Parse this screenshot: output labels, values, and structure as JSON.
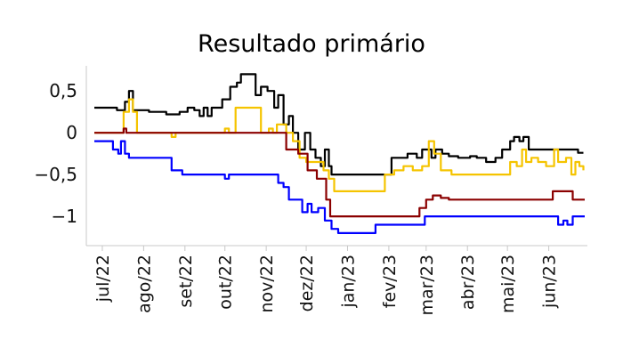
{
  "chart_data": {
    "type": "line",
    "title": "Resultado primário",
    "xlabel": "",
    "ylabel": "",
    "ylim": [
      -1.35,
      0.8
    ],
    "xlim": [
      "2022-06-19",
      "2023-06-30"
    ],
    "y_ticks": [
      0.5,
      0,
      -1
    ],
    "y_tick_labels": [
      "0,5",
      "0",
      "−0,5",
      "−1"
    ],
    "y_tick_values": [
      0.5,
      0,
      -0.5,
      -1
    ],
    "x_ticks": [
      {
        "date": "2022-07-01",
        "label": "jul/22"
      },
      {
        "date": "2022-08-01",
        "label": "ago/22"
      },
      {
        "date": "2022-09-01",
        "label": "set/22"
      },
      {
        "date": "2022-10-01",
        "label": "out/22"
      },
      {
        "date": "2022-11-01",
        "label": "nov/22"
      },
      {
        "date": "2022-12-01",
        "label": "dez/22"
      },
      {
        "date": "2023-01-01",
        "label": "jan/23"
      },
      {
        "date": "2023-02-01",
        "label": "fev/23"
      },
      {
        "date": "2023-03-01",
        "label": "mar/23"
      },
      {
        "date": "2023-04-01",
        "label": "abr/23"
      },
      {
        "date": "2023-05-01",
        "label": "mai/23"
      },
      {
        "date": "2023-06-01",
        "label": "jun/23"
      }
    ],
    "grid": false,
    "series": [
      {
        "color": "#000000",
        "points": [
          [
            "2022-06-25",
            0.3
          ],
          [
            "2022-07-08",
            0.3
          ],
          [
            "2022-07-12",
            0.27
          ],
          [
            "2022-07-18",
            0.37
          ],
          [
            "2022-07-21",
            0.5
          ],
          [
            "2022-07-24",
            0.27
          ],
          [
            "2022-07-28",
            0.27
          ],
          [
            "2022-08-05",
            0.25
          ],
          [
            "2022-08-12",
            0.25
          ],
          [
            "2022-08-18",
            0.22
          ],
          [
            "2022-08-22",
            0.22
          ],
          [
            "2022-08-28",
            0.25
          ],
          [
            "2022-09-03",
            0.3
          ],
          [
            "2022-09-08",
            0.27
          ],
          [
            "2022-09-12",
            0.2
          ],
          [
            "2022-09-15",
            0.3
          ],
          [
            "2022-09-18",
            0.2
          ],
          [
            "2022-09-21",
            0.3
          ],
          [
            "2022-09-25",
            0.3
          ],
          [
            "2022-09-29",
            0.4
          ],
          [
            "2022-10-05",
            0.55
          ],
          [
            "2022-10-10",
            0.6
          ],
          [
            "2022-10-13",
            0.7
          ],
          [
            "2022-10-20",
            0.7
          ],
          [
            "2022-10-24",
            0.45
          ],
          [
            "2022-10-28",
            0.55
          ],
          [
            "2022-11-02",
            0.5
          ],
          [
            "2022-11-07",
            0.3
          ],
          [
            "2022-11-10",
            0.45
          ],
          [
            "2022-11-14",
            0.1
          ],
          [
            "2022-11-18",
            0.2
          ],
          [
            "2022-11-21",
            0.0
          ],
          [
            "2022-11-25",
            -0.2
          ],
          [
            "2022-11-30",
            0.0
          ],
          [
            "2022-12-04",
            -0.2
          ],
          [
            "2022-12-08",
            -0.3
          ],
          [
            "2022-12-12",
            -0.4
          ],
          [
            "2022-12-15",
            -0.2
          ],
          [
            "2022-12-18",
            -0.4
          ],
          [
            "2022-12-20",
            -0.5
          ],
          [
            "2023-01-25",
            -0.5
          ],
          [
            "2023-02-03",
            -0.3
          ],
          [
            "2023-02-10",
            -0.3
          ],
          [
            "2023-02-15",
            -0.25
          ],
          [
            "2023-02-22",
            -0.3
          ],
          [
            "2023-02-26",
            -0.2
          ],
          [
            "2023-03-05",
            -0.3
          ],
          [
            "2023-03-08",
            -0.2
          ],
          [
            "2023-03-13",
            -0.25
          ],
          [
            "2023-03-18",
            -0.28
          ],
          [
            "2023-03-25",
            -0.3
          ],
          [
            "2023-04-03",
            -0.28
          ],
          [
            "2023-04-08",
            -0.3
          ],
          [
            "2023-04-15",
            -0.35
          ],
          [
            "2023-04-22",
            -0.3
          ],
          [
            "2023-04-27",
            -0.2
          ],
          [
            "2023-05-03",
            -0.1
          ],
          [
            "2023-05-06",
            -0.05
          ],
          [
            "2023-05-10",
            -0.1
          ],
          [
            "2023-05-13",
            -0.05
          ],
          [
            "2023-05-17",
            -0.2
          ],
          [
            "2023-06-20",
            -0.2
          ],
          [
            "2023-06-23",
            -0.24
          ],
          [
            "2023-06-27",
            -0.24
          ]
        ]
      },
      {
        "color": "#f5c400",
        "points": [
          [
            "2022-06-25",
            0.0
          ],
          [
            "2022-07-12",
            0.0
          ],
          [
            "2022-07-17",
            0.25
          ],
          [
            "2022-07-21",
            0.4
          ],
          [
            "2022-07-24",
            0.25
          ],
          [
            "2022-07-27",
            0.0
          ],
          [
            "2022-08-20",
            0.0
          ],
          [
            "2022-08-22",
            -0.05
          ],
          [
            "2022-08-25",
            0.0
          ],
          [
            "2022-09-28",
            0.0
          ],
          [
            "2022-10-01",
            0.05
          ],
          [
            "2022-10-04",
            0.0
          ],
          [
            "2022-10-06",
            0.0
          ],
          [
            "2022-10-09",
            0.3
          ],
          [
            "2022-10-24",
            0.3
          ],
          [
            "2022-10-28",
            0.0
          ],
          [
            "2022-11-03",
            0.05
          ],
          [
            "2022-11-06",
            0.0
          ],
          [
            "2022-11-09",
            0.1
          ],
          [
            "2022-11-16",
            0.0
          ],
          [
            "2022-11-21",
            -0.1
          ],
          [
            "2022-11-26",
            -0.3
          ],
          [
            "2022-12-01",
            -0.35
          ],
          [
            "2022-12-06",
            -0.35
          ],
          [
            "2022-12-14",
            -0.45
          ],
          [
            "2022-12-18",
            -0.55
          ],
          [
            "2022-12-22",
            -0.7
          ],
          [
            "2023-01-25",
            -0.7
          ],
          [
            "2023-01-29",
            -0.5
          ],
          [
            "2023-02-05",
            -0.45
          ],
          [
            "2023-02-12",
            -0.4
          ],
          [
            "2023-02-19",
            -0.45
          ],
          [
            "2023-02-26",
            -0.4
          ],
          [
            "2023-03-03",
            -0.1
          ],
          [
            "2023-03-07",
            -0.25
          ],
          [
            "2023-03-12",
            -0.45
          ],
          [
            "2023-03-20",
            -0.5
          ],
          [
            "2023-04-28",
            -0.5
          ],
          [
            "2023-05-03",
            -0.35
          ],
          [
            "2023-05-08",
            -0.4
          ],
          [
            "2023-05-12",
            -0.2
          ],
          [
            "2023-05-15",
            -0.35
          ],
          [
            "2023-05-19",
            -0.3
          ],
          [
            "2023-05-24",
            -0.35
          ],
          [
            "2023-05-30",
            -0.4
          ],
          [
            "2023-06-05",
            -0.2
          ],
          [
            "2023-06-08",
            -0.35
          ],
          [
            "2023-06-14",
            -0.3
          ],
          [
            "2023-06-18",
            -0.5
          ],
          [
            "2023-06-21",
            -0.35
          ],
          [
            "2023-06-24",
            -0.4
          ],
          [
            "2023-06-27",
            -0.45
          ]
        ]
      },
      {
        "color": "#8b0000",
        "points": [
          [
            "2022-06-25",
            0.0
          ],
          [
            "2022-07-15",
            0.0
          ],
          [
            "2022-07-17",
            0.05
          ],
          [
            "2022-07-19",
            0.0
          ],
          [
            "2022-11-12",
            0.0
          ],
          [
            "2022-11-16",
            -0.2
          ],
          [
            "2022-11-25",
            -0.25
          ],
          [
            "2022-12-02",
            -0.45
          ],
          [
            "2022-12-09",
            -0.55
          ],
          [
            "2022-12-16",
            -0.8
          ],
          [
            "2022-12-19",
            -1.0
          ],
          [
            "2023-02-20",
            -1.0
          ],
          [
            "2023-02-24",
            -0.9
          ],
          [
            "2023-03-01",
            -0.8
          ],
          [
            "2023-03-06",
            -0.75
          ],
          [
            "2023-03-12",
            -0.78
          ],
          [
            "2023-03-18",
            -0.8
          ],
          [
            "2023-05-31",
            -0.8
          ],
          [
            "2023-06-04",
            -0.7
          ],
          [
            "2023-06-15",
            -0.7
          ],
          [
            "2023-06-19",
            -0.8
          ],
          [
            "2023-06-28",
            -0.8
          ]
        ]
      },
      {
        "color": "#0000ff",
        "points": [
          [
            "2022-06-25",
            -0.1
          ],
          [
            "2022-07-05",
            -0.1
          ],
          [
            "2022-07-09",
            -0.2
          ],
          [
            "2022-07-13",
            -0.25
          ],
          [
            "2022-07-15",
            -0.1
          ],
          [
            "2022-07-18",
            -0.25
          ],
          [
            "2022-07-21",
            -0.3
          ],
          [
            "2022-08-20",
            -0.3
          ],
          [
            "2022-08-22",
            -0.45
          ],
          [
            "2022-08-30",
            -0.5
          ],
          [
            "2022-09-29",
            -0.5
          ],
          [
            "2022-10-01",
            -0.55
          ],
          [
            "2022-10-04",
            -0.5
          ],
          [
            "2022-10-08",
            -0.5
          ],
          [
            "2022-11-06",
            -0.5
          ],
          [
            "2022-11-10",
            -0.6
          ],
          [
            "2022-11-14",
            -0.65
          ],
          [
            "2022-11-18",
            -0.8
          ],
          [
            "2022-11-25",
            -0.8
          ],
          [
            "2022-11-28",
            -0.95
          ],
          [
            "2022-12-02",
            -0.85
          ],
          [
            "2022-12-05",
            -0.95
          ],
          [
            "2022-12-10",
            -0.9
          ],
          [
            "2022-12-15",
            -1.05
          ],
          [
            "2022-12-20",
            -1.15
          ],
          [
            "2022-12-25",
            -1.2
          ],
          [
            "2023-01-18",
            -1.2
          ],
          [
            "2023-01-22",
            -1.1
          ],
          [
            "2023-02-22",
            -1.1
          ],
          [
            "2023-02-28",
            -1.0
          ],
          [
            "2023-06-05",
            -1.0
          ],
          [
            "2023-06-08",
            -1.1
          ],
          [
            "2023-06-12",
            -1.05
          ],
          [
            "2023-06-15",
            -1.1
          ],
          [
            "2023-06-19",
            -1.0
          ],
          [
            "2023-06-28",
            -1.0
          ]
        ]
      }
    ]
  }
}
